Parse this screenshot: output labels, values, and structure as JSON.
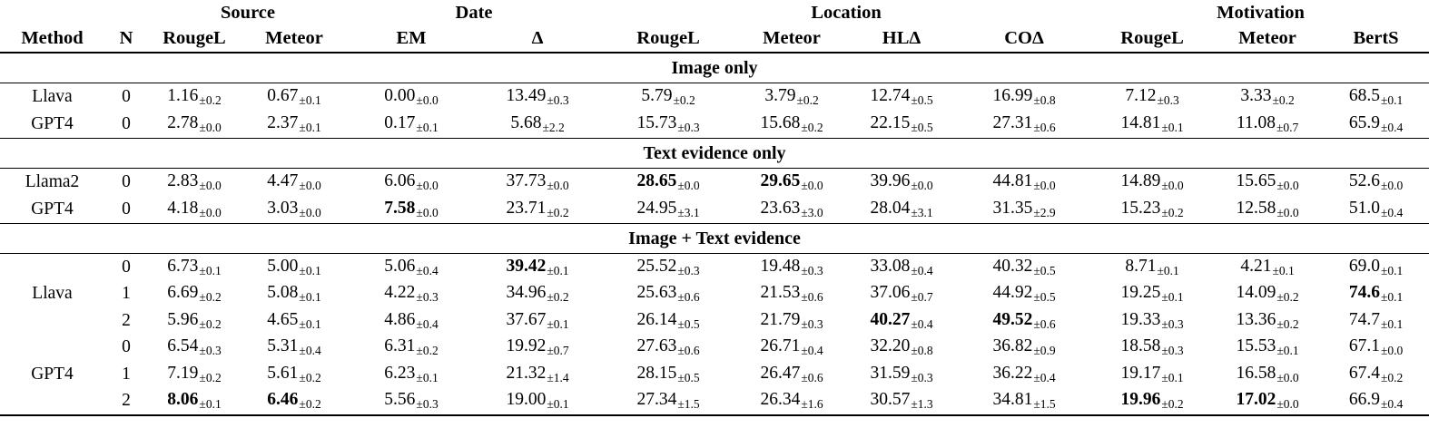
{
  "table": {
    "group_headers": [
      {
        "label": "Source",
        "span": 2
      },
      {
        "label": "Date",
        "span": 2
      },
      {
        "label": "Location",
        "span": 4
      },
      {
        "label": "Motivation",
        "span": 3
      }
    ],
    "column_headers": [
      "Method",
      "N",
      "RougeL",
      "Meteor",
      "EM",
      "Δ",
      "RougeL",
      "Meteor",
      "HLΔ",
      "COΔ",
      "RougeL",
      "Meteor",
      "BertS"
    ],
    "sections": [
      {
        "title": "Image only",
        "rows": [
          {
            "method": "Llava",
            "method_rowspan": 1,
            "n": "0",
            "cells": [
              {
                "v": "1.16",
                "pm": "±0.2"
              },
              {
                "v": "0.67",
                "pm": "±0.1"
              },
              {
                "v": "0.00",
                "pm": "±0.0"
              },
              {
                "v": "13.49",
                "pm": "±0.3"
              },
              {
                "v": "5.79",
                "pm": "±0.2"
              },
              {
                "v": "3.79",
                "pm": "±0.2"
              },
              {
                "v": "12.74",
                "pm": "±0.5"
              },
              {
                "v": "16.99",
                "pm": "±0.8"
              },
              {
                "v": "7.12",
                "pm": "±0.3"
              },
              {
                "v": "3.33",
                "pm": "±0.2"
              },
              {
                "v": "68.5",
                "pm": "±0.1"
              }
            ]
          },
          {
            "method": "GPT4",
            "method_rowspan": 1,
            "n": "0",
            "cells": [
              {
                "v": "2.78",
                "pm": "±0.0"
              },
              {
                "v": "2.37",
                "pm": "±0.1"
              },
              {
                "v": "0.17",
                "pm": "±0.1"
              },
              {
                "v": "5.68",
                "pm": "±2.2"
              },
              {
                "v": "15.73",
                "pm": "±0.3"
              },
              {
                "v": "15.68",
                "pm": "±0.2"
              },
              {
                "v": "22.15",
                "pm": "±0.5"
              },
              {
                "v": "27.31",
                "pm": "±0.6"
              },
              {
                "v": "14.81",
                "pm": "±0.1"
              },
              {
                "v": "11.08",
                "pm": "±0.7"
              },
              {
                "v": "65.9",
                "pm": "±0.4"
              }
            ]
          }
        ]
      },
      {
        "title": "Text evidence only",
        "rows": [
          {
            "method": "Llama2",
            "method_rowspan": 1,
            "n": "0",
            "cells": [
              {
                "v": "2.83",
                "pm": "±0.0"
              },
              {
                "v": "4.47",
                "pm": "±0.0"
              },
              {
                "v": "6.06",
                "pm": "±0.0"
              },
              {
                "v": "37.73",
                "pm": "±0.0"
              },
              {
                "v": "28.65",
                "pm": "±0.0",
                "b": true
              },
              {
                "v": "29.65",
                "pm": "±0.0",
                "b": true
              },
              {
                "v": "39.96",
                "pm": "±0.0"
              },
              {
                "v": "44.81",
                "pm": "±0.0"
              },
              {
                "v": "14.89",
                "pm": "±0.0"
              },
              {
                "v": "15.65",
                "pm": "±0.0"
              },
              {
                "v": "52.6",
                "pm": "±0.0"
              }
            ]
          },
          {
            "method": "GPT4",
            "method_rowspan": 1,
            "n": "0",
            "cells": [
              {
                "v": "4.18",
                "pm": "±0.0"
              },
              {
                "v": "3.03",
                "pm": "±0.0"
              },
              {
                "v": "7.58",
                "pm": "±0.0",
                "b": true
              },
              {
                "v": "23.71",
                "pm": "±0.2"
              },
              {
                "v": "24.95",
                "pm": "±3.1"
              },
              {
                "v": "23.63",
                "pm": "±3.0"
              },
              {
                "v": "28.04",
                "pm": "±3.1"
              },
              {
                "v": "31.35",
                "pm": "±2.9"
              },
              {
                "v": "15.23",
                "pm": "±0.2"
              },
              {
                "v": "12.58",
                "pm": "±0.0"
              },
              {
                "v": "51.0",
                "pm": "±0.4"
              }
            ]
          }
        ]
      },
      {
        "title": "Image + Text evidence",
        "rows": [
          {
            "method": "Llava",
            "method_rowspan": 3,
            "n": "0",
            "cells": [
              {
                "v": "6.73",
                "pm": "±0.1"
              },
              {
                "v": "5.00",
                "pm": "±0.1"
              },
              {
                "v": "5.06",
                "pm": "±0.4"
              },
              {
                "v": "39.42",
                "pm": "±0.1",
                "b": true
              },
              {
                "v": "25.52",
                "pm": "±0.3"
              },
              {
                "v": "19.48",
                "pm": "±0.3"
              },
              {
                "v": "33.08",
                "pm": "±0.4"
              },
              {
                "v": "40.32",
                "pm": "±0.5"
              },
              {
                "v": "8.71",
                "pm": "±0.1"
              },
              {
                "v": "4.21",
                "pm": "±0.1"
              },
              {
                "v": "69.0",
                "pm": "±0.1"
              }
            ]
          },
          {
            "method": null,
            "n": "1",
            "cells": [
              {
                "v": "6.69",
                "pm": "±0.2"
              },
              {
                "v": "5.08",
                "pm": "±0.1"
              },
              {
                "v": "4.22",
                "pm": "±0.3"
              },
              {
                "v": "34.96",
                "pm": "±0.2"
              },
              {
                "v": "25.63",
                "pm": "±0.6"
              },
              {
                "v": "21.53",
                "pm": "±0.6"
              },
              {
                "v": "37.06",
                "pm": "±0.7"
              },
              {
                "v": "44.92",
                "pm": "±0.5"
              },
              {
                "v": "19.25",
                "pm": "±0.1"
              },
              {
                "v": "14.09",
                "pm": "±0.2"
              },
              {
                "v": "74.6",
                "pm": "±0.1",
                "b": true
              }
            ]
          },
          {
            "method": null,
            "n": "2",
            "cells": [
              {
                "v": "5.96",
                "pm": "±0.2"
              },
              {
                "v": "4.65",
                "pm": "±0.1"
              },
              {
                "v": "4.86",
                "pm": "±0.4"
              },
              {
                "v": "37.67",
                "pm": "±0.1"
              },
              {
                "v": "26.14",
                "pm": "±0.5"
              },
              {
                "v": "21.79",
                "pm": "±0.3"
              },
              {
                "v": "40.27",
                "pm": "±0.4",
                "b": true
              },
              {
                "v": "49.52",
                "pm": "±0.6",
                "b": true
              },
              {
                "v": "19.33",
                "pm": "±0.3"
              },
              {
                "v": "13.36",
                "pm": "±0.2"
              },
              {
                "v": "74.7",
                "pm": "±0.1"
              }
            ]
          },
          {
            "method": "GPT4",
            "method_rowspan": 3,
            "n": "0",
            "cells": [
              {
                "v": "6.54",
                "pm": "±0.3"
              },
              {
                "v": "5.31",
                "pm": "±0.4"
              },
              {
                "v": "6.31",
                "pm": "±0.2"
              },
              {
                "v": "19.92",
                "pm": "±0.7"
              },
              {
                "v": "27.63",
                "pm": "±0.6"
              },
              {
                "v": "26.71",
                "pm": "±0.4"
              },
              {
                "v": "32.20",
                "pm": "±0.8"
              },
              {
                "v": "36.82",
                "pm": "±0.9"
              },
              {
                "v": "18.58",
                "pm": "±0.3"
              },
              {
                "v": "15.53",
                "pm": "±0.1"
              },
              {
                "v": "67.1",
                "pm": "±0.0"
              }
            ]
          },
          {
            "method": null,
            "n": "1",
            "cells": [
              {
                "v": "7.19",
                "pm": "±0.2"
              },
              {
                "v": "5.61",
                "pm": "±0.2"
              },
              {
                "v": "6.23",
                "pm": "±0.1"
              },
              {
                "v": "21.32",
                "pm": "±1.4"
              },
              {
                "v": "28.15",
                "pm": "±0.5"
              },
              {
                "v": "26.47",
                "pm": "±0.6"
              },
              {
                "v": "31.59",
                "pm": "±0.3"
              },
              {
                "v": "36.22",
                "pm": "±0.4"
              },
              {
                "v": "19.17",
                "pm": "±0.1"
              },
              {
                "v": "16.58",
                "pm": "±0.0"
              },
              {
                "v": "67.4",
                "pm": "±0.2"
              }
            ]
          },
          {
            "method": null,
            "n": "2",
            "cells": [
              {
                "v": "8.06",
                "pm": "±0.1",
                "b": true
              },
              {
                "v": "6.46",
                "pm": "±0.2",
                "b": true
              },
              {
                "v": "5.56",
                "pm": "±0.3"
              },
              {
                "v": "19.00",
                "pm": "±0.1"
              },
              {
                "v": "27.34",
                "pm": "±1.5"
              },
              {
                "v": "26.34",
                "pm": "±1.6"
              },
              {
                "v": "30.57",
                "pm": "±1.3"
              },
              {
                "v": "34.81",
                "pm": "±1.5"
              },
              {
                "v": "19.96",
                "pm": "±0.2",
                "b": true
              },
              {
                "v": "17.02",
                "pm": "±0.0",
                "b": true
              },
              {
                "v": "66.9",
                "pm": "±0.4"
              }
            ]
          }
        ]
      }
    ]
  }
}
